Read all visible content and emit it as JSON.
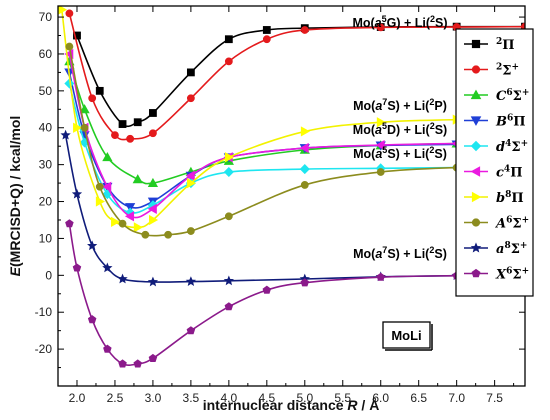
{
  "chart_data": {
    "type": "line",
    "xlabel": "internuclear distance R / Å",
    "ylabel": "E(MRCISD+Q) / kcal/mol",
    "xlim": [
      1.75,
      7.9
    ],
    "ylim": [
      -30,
      73
    ],
    "xticks": [
      "2.0",
      "2.5",
      "3.0",
      "3.5",
      "4.0",
      "4.5",
      "5.0",
      "5.5",
      "6.0",
      "6.5",
      "7.0",
      "7.5"
    ],
    "yticks": [
      "-20",
      "-10",
      "0",
      "10",
      "20",
      "30",
      "40",
      "50",
      "60",
      "70"
    ],
    "grid": false,
    "legend_position": "right",
    "box_label": "MoLi",
    "annotations": [
      "Mo(a5G) + Li(2S)",
      "Mo(a7S) + Li(2P)",
      "Mo(a5D) + Li(2S)",
      "Mo(a5S) + Li(2S)",
      "Mo(a7S) + Li(2S)"
    ],
    "series": [
      {
        "name": "2Π",
        "color": "#000000",
        "marker": "square",
        "x": [
          2.0,
          2.3,
          2.6,
          2.8,
          3.0,
          3.5,
          4.0,
          4.5,
          5.0,
          6.0,
          7.0,
          7.9
        ],
        "y": [
          65,
          50,
          41,
          41.5,
          44,
          55,
          64,
          66.5,
          67,
          67.3,
          67.4,
          67.4
        ]
      },
      {
        "name": "2Σ+",
        "color": "#e41a1c",
        "marker": "circle",
        "x": [
          1.9,
          2.2,
          2.5,
          2.7,
          3.0,
          3.5,
          4.0,
          4.5,
          5.0,
          6.0,
          7.0,
          7.9
        ],
        "y": [
          71,
          48,
          38,
          37,
          38.5,
          48,
          58,
          64,
          66.5,
          67.2,
          67.3,
          67.4
        ]
      },
      {
        "name": "C6Σ+",
        "color": "#22cc22",
        "marker": "triangle-up",
        "x": [
          1.9,
          2.1,
          2.4,
          2.8,
          3.0,
          3.5,
          4.0,
          5.0,
          6.0,
          7.0,
          7.9
        ],
        "y": [
          58,
          45,
          32,
          26,
          25,
          28,
          31,
          34,
          35.2,
          35.7,
          35.8
        ]
      },
      {
        "name": "B6Π",
        "color": "#1f3fd6",
        "marker": "triangle-down",
        "x": [
          1.9,
          2.1,
          2.4,
          2.7,
          3.0,
          3.5,
          4.0,
          5.0,
          6.0,
          7.0,
          7.9
        ],
        "y": [
          55,
          38,
          24,
          18.5,
          20,
          27,
          32,
          34.5,
          35.2,
          35.5,
          35.6
        ]
      },
      {
        "name": "d4Σ+",
        "color": "#1ee6f0",
        "marker": "diamond",
        "x": [
          1.9,
          2.1,
          2.4,
          2.7,
          3.0,
          3.5,
          4.0,
          5.0,
          6.0,
          7.0,
          7.9
        ],
        "y": [
          52,
          36,
          22,
          17,
          19,
          25,
          28,
          28.8,
          29,
          29.2,
          29.3
        ]
      },
      {
        "name": "c4Π",
        "color": "#ea1ae0",
        "marker": "triangle-left",
        "x": [
          1.9,
          2.1,
          2.4,
          2.7,
          3.0,
          3.5,
          4.0,
          5.0,
          6.0,
          7.0,
          7.9
        ],
        "y": [
          60,
          40,
          24,
          16,
          18,
          27,
          32,
          34.5,
          35.3,
          35.7,
          35.8
        ]
      },
      {
        "name": "b8Π",
        "color": "#ffff00",
        "marker": "triangle-right",
        "x": [
          1.8,
          2.0,
          2.3,
          2.5,
          2.8,
          3.0,
          3.5,
          4.0,
          5.0,
          6.0,
          7.0,
          7.9
        ],
        "y": [
          72,
          40,
          20,
          14.5,
          13,
          15,
          25,
          32,
          39,
          41.5,
          42.2,
          42.5
        ]
      },
      {
        "name": "A6Σ+",
        "color": "#8c8c1e",
        "marker": "circle",
        "x": [
          1.9,
          2.1,
          2.3,
          2.6,
          2.9,
          3.2,
          3.5,
          4.0,
          5.0,
          6.0,
          7.0,
          7.9
        ],
        "y": [
          62,
          40,
          24,
          14,
          11,
          11,
          12,
          16,
          24.5,
          28,
          29.2,
          29.5
        ]
      },
      {
        "name": "a8Σ+",
        "color": "#101c7a",
        "marker": "star",
        "x": [
          1.85,
          2.0,
          2.2,
          2.4,
          2.6,
          3.0,
          3.5,
          4.0,
          5.0,
          6.0,
          7.0,
          7.9
        ],
        "y": [
          38,
          22,
          8,
          2,
          -1,
          -1.8,
          -1.7,
          -1.5,
          -1,
          -0.4,
          -0.1,
          0
        ]
      },
      {
        "name": "X6Σ+",
        "color": "#8b1a8b",
        "marker": "pentagon",
        "x": [
          1.9,
          2.0,
          2.2,
          2.4,
          2.6,
          2.8,
          3.0,
          3.5,
          4.0,
          4.5,
          5.0,
          6.0,
          7.0,
          7.9
        ],
        "y": [
          14,
          2,
          -12,
          -20,
          -24,
          -24,
          -22.5,
          -15,
          -8.5,
          -4,
          -2,
          -0.5,
          -0.1,
          0
        ]
      }
    ]
  },
  "legend_labels": [
    {
      "base": "Π",
      "sup": "2",
      "letter": ""
    },
    {
      "base": "Σ",
      "sup": "2",
      "letter": "",
      "tail": "+"
    },
    {
      "base": "Σ",
      "sup": "6",
      "letter": "C",
      "tail": "+"
    },
    {
      "base": "Π",
      "sup": "6",
      "letter": "B"
    },
    {
      "base": "Σ",
      "sup": "4",
      "letter": "d",
      "tail": "+"
    },
    {
      "base": "Π",
      "sup": "4",
      "letter": "c"
    },
    {
      "base": "Π",
      "sup": "8",
      "letter": "b"
    },
    {
      "base": "Σ",
      "sup": "6",
      "letter": "A",
      "tail": "+"
    },
    {
      "base": "Σ",
      "sup": "8",
      "letter": "a",
      "tail": "+"
    },
    {
      "base": "Σ",
      "sup": "6",
      "letter": "X",
      "tail": "+"
    }
  ]
}
